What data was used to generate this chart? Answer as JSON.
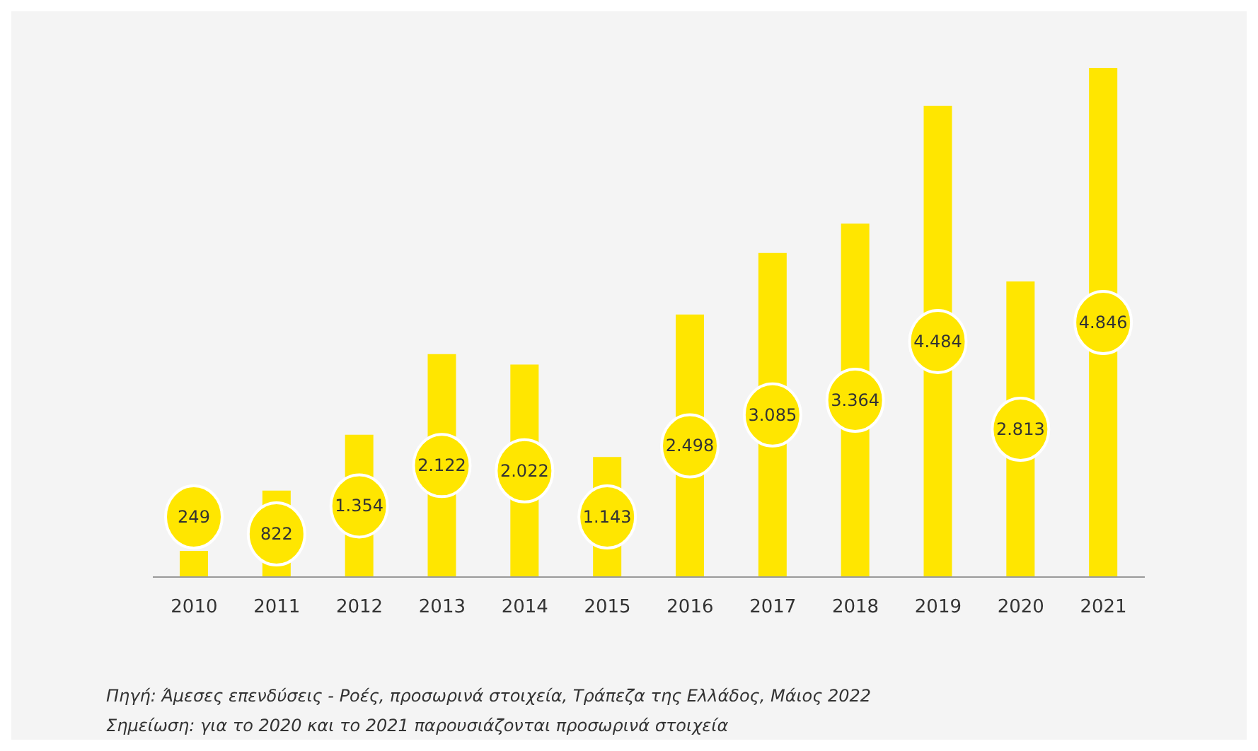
{
  "chart_data": {
    "type": "bar",
    "categories": [
      "2010",
      "2011",
      "2012",
      "2013",
      "2014",
      "2015",
      "2016",
      "2017",
      "2018",
      "2019",
      "2020",
      "2021"
    ],
    "values": [
      249,
      822,
      1354,
      2122,
      2022,
      1143,
      2498,
      3085,
      3364,
      4484,
      2813,
      4846
    ],
    "value_labels": [
      "249",
      "822",
      "1.354",
      "2.122",
      "2.022",
      "1.143",
      "2.498",
      "3.085",
      "3.364",
      "4.484",
      "2.813",
      "4.846"
    ],
    "color": "#ffe600",
    "grid": false,
    "legend": false,
    "annotations": [
      "Πηγή: Άμεσες επενδύσεις - Ροές, προσωρινά στοιχεία, Τράπεζα της Ελλάδος, Μάιος 2022",
      "Σημείωση: για το 2020 και το 2021 παρουσιάζονται προσωρινά στοιχεία"
    ]
  }
}
